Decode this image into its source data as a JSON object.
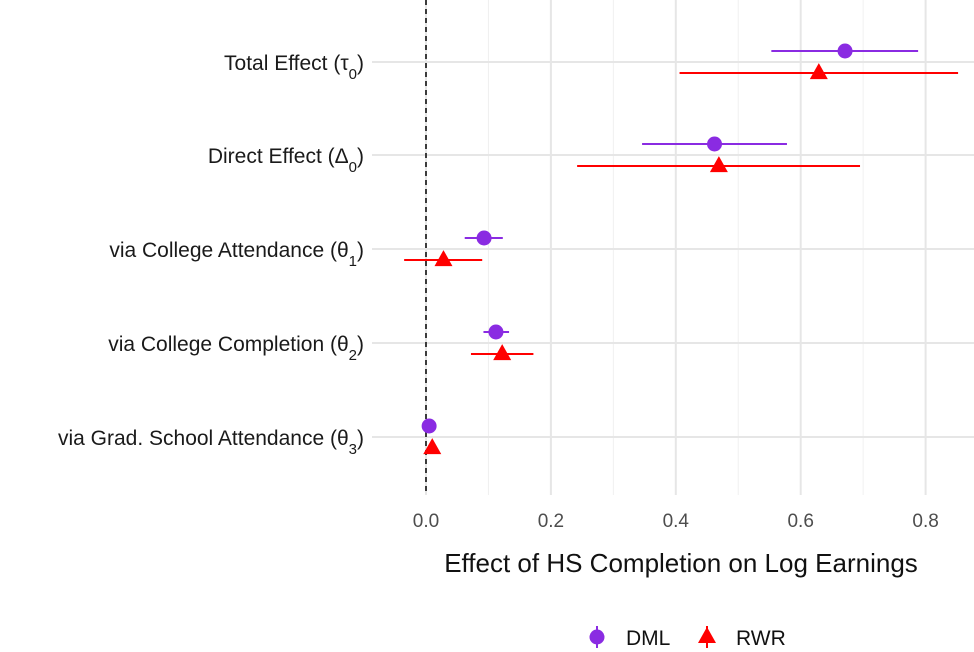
{
  "chart_data": {
    "type": "scatter",
    "subtype": "coefficient-plot",
    "xlabel": "Effect of HS Completion on Log Earnings",
    "xlim": [
      -0.08,
      0.875
    ],
    "x_ticks": [
      0.0,
      0.2,
      0.4,
      0.6,
      0.8
    ],
    "x_tick_labels": [
      "0.0",
      "0.2",
      "0.4",
      "0.6",
      "0.8"
    ],
    "reference_line": {
      "x": 0,
      "style": "dashed"
    },
    "grid": true,
    "legend_position": "bottom",
    "categories": [
      {
        "label": "Total Effect (",
        "sym": "τ",
        "sub": "0"
      },
      {
        "label": "Direct Effect (",
        "sym": "Δ",
        "sub": "0"
      },
      {
        "label": "via College Attendance (",
        "sym": "θ",
        "sub": "1"
      },
      {
        "label": "via College Completion (",
        "sym": "θ",
        "sub": "2"
      },
      {
        "label": "via Grad. School Attendance (",
        "sym": "θ",
        "sub": "3"
      }
    ],
    "series": [
      {
        "name": "DML",
        "color": "#8a2be2",
        "marker": "circle",
        "points": [
          {
            "estimate": 0.671,
            "low": 0.553,
            "high": 0.788
          },
          {
            "estimate": 0.462,
            "low": 0.346,
            "high": 0.578
          },
          {
            "estimate": 0.093,
            "low": 0.062,
            "high": 0.123
          },
          {
            "estimate": 0.112,
            "low": 0.092,
            "high": 0.133
          },
          {
            "estimate": 0.005,
            "low": 0.001,
            "high": 0.01
          }
        ]
      },
      {
        "name": "RWR",
        "color": "#ff0000",
        "marker": "triangle",
        "points": [
          {
            "estimate": 0.629,
            "low": 0.406,
            "high": 0.852
          },
          {
            "estimate": 0.469,
            "low": 0.242,
            "high": 0.695
          },
          {
            "estimate": 0.028,
            "low": -0.035,
            "high": 0.09
          },
          {
            "estimate": 0.122,
            "low": 0.072,
            "high": 0.172
          },
          {
            "estimate": 0.01,
            "low": 0.004,
            "high": 0.016
          }
        ]
      }
    ]
  }
}
